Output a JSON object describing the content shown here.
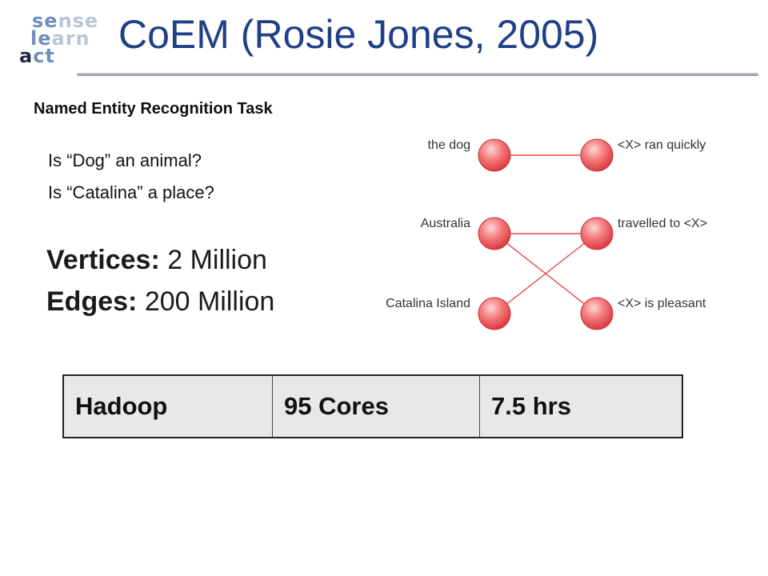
{
  "logo": {
    "row1_a": "se",
    "row1_b": "nse",
    "row2_a": "le",
    "row2_b": "arn",
    "row3_a": "a",
    "row3_b": "ct"
  },
  "title": "CoEM (Rosie Jones, 2005)",
  "subtitle": "Named Entity Recognition Task",
  "questions": [
    "Is “Dog” an animal?",
    "Is “Catalina” a place?"
  ],
  "stats": {
    "vertices_label": "Vertices:",
    "vertices_value": "2 Million",
    "edges_label": "Edges:",
    "edges_value": "200 Million"
  },
  "graph": {
    "left_nodes": [
      "the dog",
      "Australia",
      "Catalina Island"
    ],
    "right_nodes": [
      "<X> ran quickly",
      "travelled to <X>",
      "<X> is pleasant"
    ],
    "edges": [
      [
        0,
        0
      ],
      [
        1,
        1
      ],
      [
        1,
        2
      ],
      [
        2,
        1
      ]
    ],
    "node_color": "#e8464a"
  },
  "table": {
    "cells": [
      "Hadoop",
      "95 Cores",
      "7.5 hrs"
    ]
  }
}
